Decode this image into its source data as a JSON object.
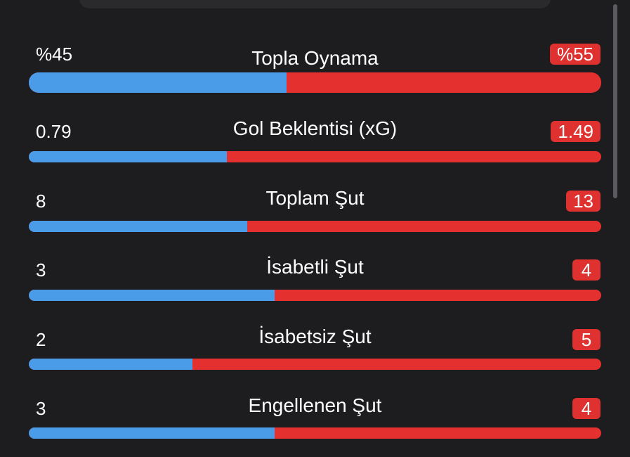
{
  "colors": {
    "home": "#4a9ce8",
    "away": "#e53030",
    "badge": "#e03131",
    "background": "#1d1d1f"
  },
  "stats": [
    {
      "label": "Topla Oynama",
      "home": "%45",
      "away": "%55",
      "home_share": 0.45
    },
    {
      "label": "Gol Beklentisi (xG)",
      "home": "0.79",
      "away": "1.49",
      "home_share": 0.346
    },
    {
      "label": "Toplam Şut",
      "home": "8",
      "away": "13",
      "home_share": 0.381
    },
    {
      "label": "İsabetli Şut",
      "home": "3",
      "away": "4",
      "home_share": 0.429
    },
    {
      "label": "İsabetsiz Şut",
      "home": "2",
      "away": "5",
      "home_share": 0.286
    },
    {
      "label": "Engellenen Şut",
      "home": "3",
      "away": "4",
      "home_share": 0.429
    }
  ]
}
